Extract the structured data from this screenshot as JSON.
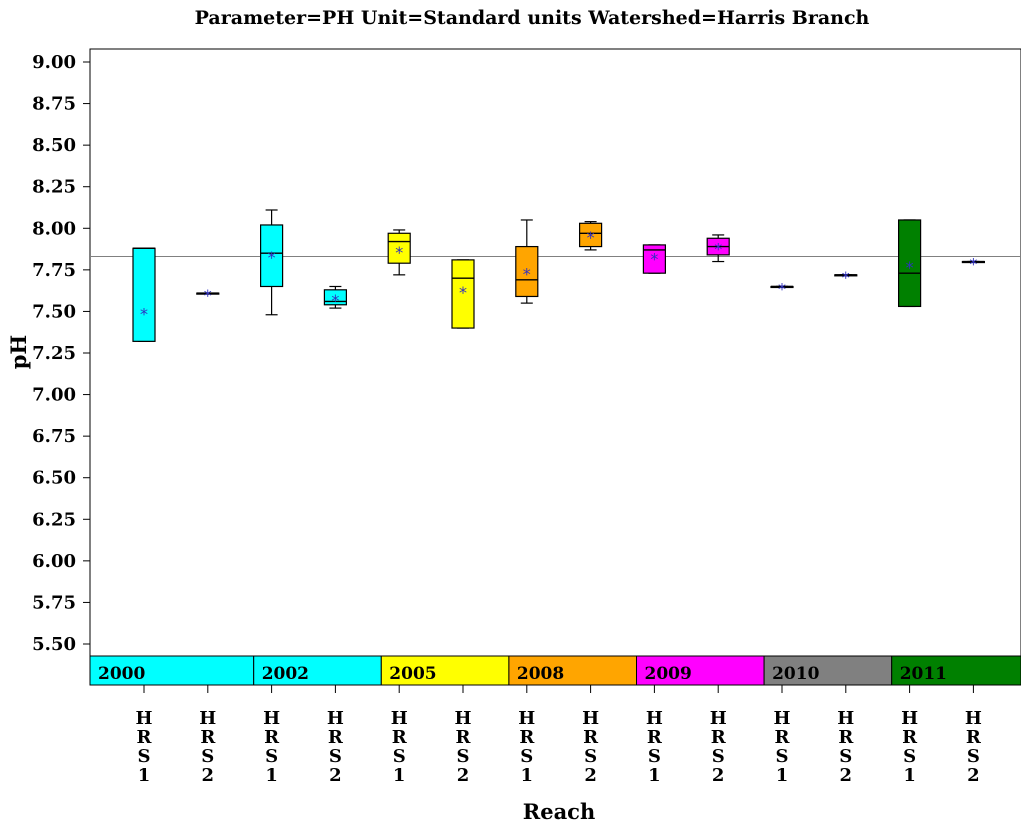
{
  "chart_data": {
    "type": "box",
    "title": "Parameter=PH  Unit=Standard units  Watershed=Harris Branch",
    "xlabel": "Reach",
    "ylabel": "pH",
    "ylim": [
      5.4,
      9.08
    ],
    "yticks": [
      "9.00",
      "8.75",
      "8.50",
      "8.25",
      "8.00",
      "7.75",
      "7.50",
      "7.25",
      "7.00",
      "6.75",
      "6.50",
      "6.25",
      "6.00",
      "5.75",
      "5.50"
    ],
    "reference_line": 7.83,
    "groups": [
      {
        "year": "2000",
        "color": "#00ffff",
        "reaches": [
          {
            "label": "HRS1",
            "min": 7.32,
            "q1": 7.32,
            "median": 7.88,
            "q3": 7.88,
            "max": 7.88,
            "mean": 7.5
          },
          {
            "label": "HRS2",
            "min": 7.61,
            "q1": 7.61,
            "median": 7.61,
            "q3": 7.61,
            "max": 7.61,
            "mean": 7.61
          }
        ]
      },
      {
        "year": "2002",
        "color": "#00ffff",
        "reaches": [
          {
            "label": "HRS1",
            "min": 7.48,
            "q1": 7.65,
            "median": 7.85,
            "q3": 8.02,
            "max": 8.11,
            "mean": 7.84
          },
          {
            "label": "HRS2",
            "min": 7.52,
            "q1": 7.54,
            "median": 7.56,
            "q3": 7.63,
            "max": 7.65,
            "mean": 7.58
          }
        ]
      },
      {
        "year": "2005",
        "color": "#ffff00",
        "reaches": [
          {
            "label": "HRS1",
            "min": 7.72,
            "q1": 7.79,
            "median": 7.92,
            "q3": 7.97,
            "max": 7.99,
            "mean": 7.87
          },
          {
            "label": "HRS2",
            "min": 7.4,
            "q1": 7.4,
            "median": 7.7,
            "q3": 7.81,
            "max": 7.81,
            "mean": 7.63
          }
        ]
      },
      {
        "year": "2008",
        "color": "#ffa500",
        "reaches": [
          {
            "label": "HRS1",
            "min": 7.55,
            "q1": 7.59,
            "median": 7.69,
            "q3": 7.89,
            "max": 8.05,
            "mean": 7.74
          },
          {
            "label": "HRS2",
            "min": 7.87,
            "q1": 7.89,
            "median": 7.97,
            "q3": 8.03,
            "max": 8.04,
            "mean": 7.96
          }
        ]
      },
      {
        "year": "2009",
        "color": "#ff00ff",
        "reaches": [
          {
            "label": "HRS1",
            "min": 7.73,
            "q1": 7.73,
            "median": 7.87,
            "q3": 7.9,
            "max": 7.9,
            "mean": 7.83
          },
          {
            "label": "HRS2",
            "min": 7.8,
            "q1": 7.84,
            "median": 7.89,
            "q3": 7.94,
            "max": 7.96,
            "mean": 7.89
          }
        ]
      },
      {
        "year": "2010",
        "color": "#808080",
        "reaches": [
          {
            "label": "HRS1",
            "min": 7.65,
            "q1": 7.65,
            "median": 7.65,
            "q3": 7.65,
            "max": 7.65,
            "mean": 7.65
          },
          {
            "label": "HRS2",
            "min": 7.72,
            "q1": 7.72,
            "median": 7.72,
            "q3": 7.72,
            "max": 7.72,
            "mean": 7.72
          }
        ]
      },
      {
        "year": "2011",
        "color": "#008000",
        "reaches": [
          {
            "label": "HRS1",
            "min": 7.53,
            "q1": 7.53,
            "median": 7.73,
            "q3": 8.05,
            "max": 8.05,
            "mean": 7.78
          },
          {
            "label": "HRS2",
            "min": 7.8,
            "q1": 7.8,
            "median": 7.8,
            "q3": 7.8,
            "max": 7.8,
            "mean": 7.8
          }
        ]
      }
    ],
    "mean_marker": "*",
    "mean_color": "#3030c0",
    "grid": false
  }
}
